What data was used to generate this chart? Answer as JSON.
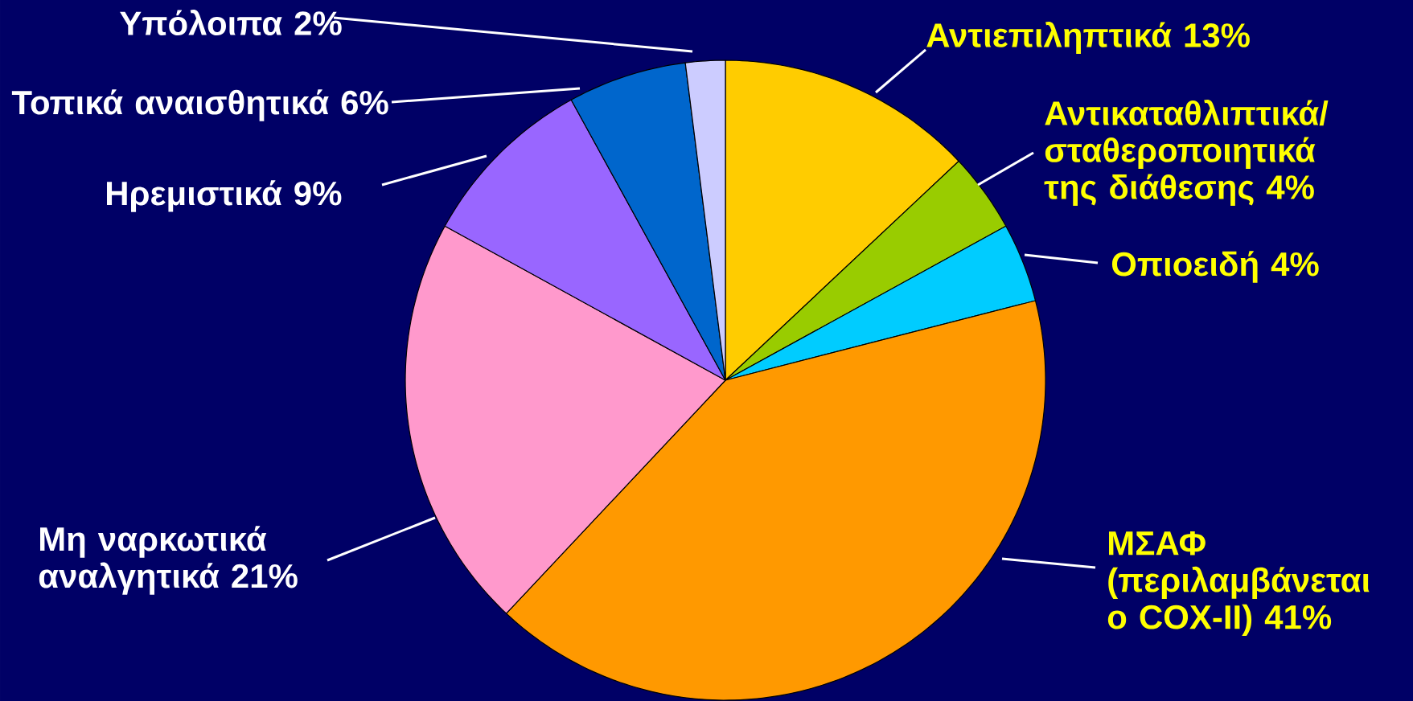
{
  "chart_data": {
    "type": "pie",
    "categories": [
      "Αντιεπιληπτικά",
      "Αντικαταθλιπτικά/ σταθεροποιητικά της διάθεσης",
      "Οπιοειδή",
      "ΜΣΑΦ (περιλαμβάνεται ο COX-II)",
      "Μη ναρκωτικά αναλγητικά",
      "Ηρεμιστικά",
      "Τοπικά αναισθητικά",
      "Υπόλοιπα"
    ],
    "values": [
      13,
      4,
      4,
      41,
      21,
      9,
      6,
      2
    ],
    "value_labels": [
      "13%",
      "4%",
      "4%",
      "41%",
      "21%",
      "9%",
      "6%",
      "2%"
    ],
    "colors": [
      "#ffcc00",
      "#99cc00",
      "#00ccff",
      "#ff9900",
      "#ff99cc",
      "#9966ff",
      "#0066cc",
      "#ccccff"
    ]
  }
}
